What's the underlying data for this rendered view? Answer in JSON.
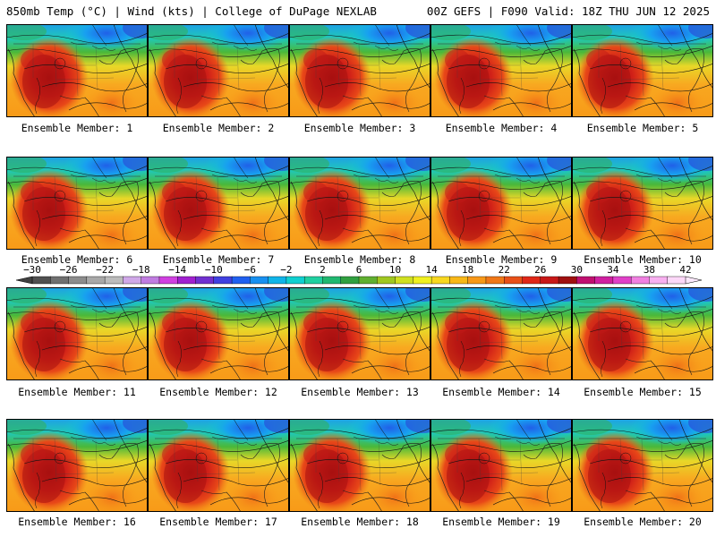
{
  "header": {
    "left": "850mb Temp (°C) | Wind (kts) | College of DuPage NEXLAB",
    "right": "00Z GEFS | F090 Valid: 18Z THU JUN 12 2025"
  },
  "colorbar": {
    "labels": [
      "−30",
      "−26",
      "−22",
      "−18",
      "−14",
      "−10",
      "−6",
      "−2",
      "2",
      "6",
      "10",
      "14",
      "18",
      "22",
      "26",
      "30",
      "34",
      "38",
      "42"
    ],
    "colors": [
      "#505050",
      "#707070",
      "#8c8c8c",
      "#a8a8a8",
      "#bcbcbc",
      "#d0a8e8",
      "#c07ce0",
      "#d040e0",
      "#a020d0",
      "#7030d0",
      "#4040e0",
      "#2060f0",
      "#1890f0",
      "#10b4e8",
      "#10d0d0",
      "#20d0a0",
      "#20b870",
      "#30a040",
      "#60b030",
      "#a0c820",
      "#d0e020",
      "#f0f020",
      "#f8d820",
      "#f8b818",
      "#f89818",
      "#f07818",
      "#e85018",
      "#e02818",
      "#c81818",
      "#a01010",
      "#c01070",
      "#d020a0",
      "#e040c8",
      "#f080e0",
      "#f8b0f0",
      "#fcd8f8"
    ]
  },
  "members": [
    {
      "label": "Ensemble Member: 1"
    },
    {
      "label": "Ensemble Member: 2"
    },
    {
      "label": "Ensemble Member: 3"
    },
    {
      "label": "Ensemble Member: 4"
    },
    {
      "label": "Ensemble Member: 5"
    },
    {
      "label": "Ensemble Member: 6"
    },
    {
      "label": "Ensemble Member: 7"
    },
    {
      "label": "Ensemble Member: 8"
    },
    {
      "label": "Ensemble Member: 9"
    },
    {
      "label": "Ensemble Member: 10"
    },
    {
      "label": "Ensemble Member: 11"
    },
    {
      "label": "Ensemble Member: 12"
    },
    {
      "label": "Ensemble Member: 13"
    },
    {
      "label": "Ensemble Member: 14"
    },
    {
      "label": "Ensemble Member: 15"
    },
    {
      "label": "Ensemble Member: 16"
    },
    {
      "label": "Ensemble Member: 17"
    },
    {
      "label": "Ensemble Member: 18"
    },
    {
      "label": "Ensemble Member: 19"
    },
    {
      "label": "Ensemble Member: 20"
    }
  ]
}
